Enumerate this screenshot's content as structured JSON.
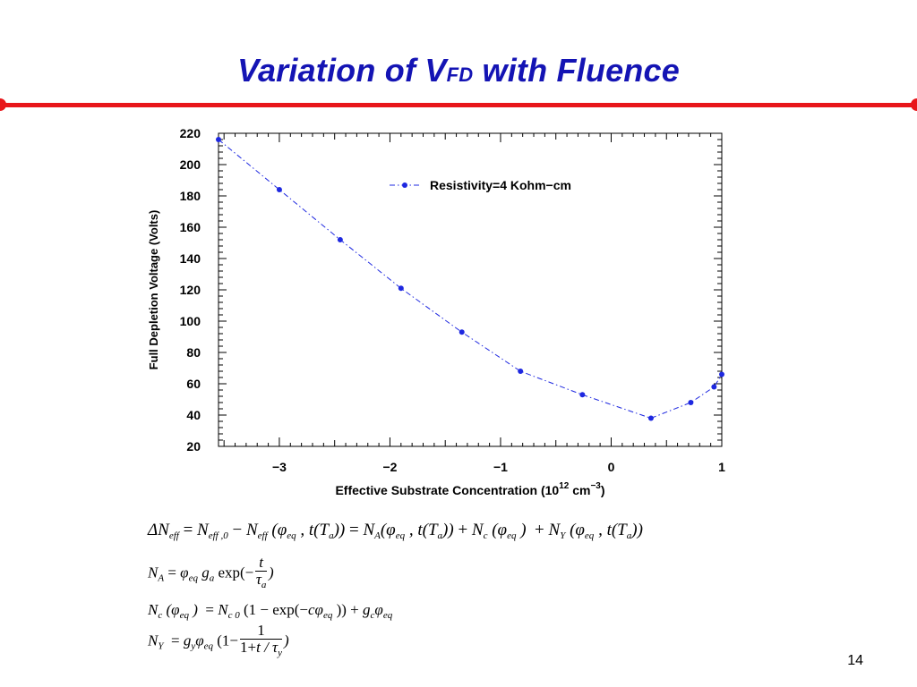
{
  "slide": {
    "title_main": "Variation of V",
    "title_sub": "FD",
    "title_end": " with Fluence",
    "page_number": "14",
    "accent_color": "#1414b4",
    "rule_color": "#e8161a"
  },
  "chart_data": {
    "type": "line",
    "xlabel_prefix": "Effective Substrate Concentration (10",
    "xlabel_exp": "12",
    "xlabel_mid": " cm",
    "xlabel_exp2": "−3",
    "xlabel_suffix": ")",
    "ylabel": "Full Depletion Voltage (Volts)",
    "xlim": [
      -3.55,
      1.0
    ],
    "ylim": [
      20,
      220
    ],
    "xticks": [
      -3,
      -2,
      -1,
      0,
      1
    ],
    "xtick_labels": [
      "−3",
      "−2",
      "−1",
      "0",
      "1"
    ],
    "yticks": [
      20,
      40,
      60,
      80,
      100,
      120,
      140,
      160,
      180,
      200,
      220
    ],
    "grid": false,
    "legend_position": "top-right",
    "series": [
      {
        "name": "Resistivity=4 Kohm−cm",
        "color": "#1e28e0",
        "line_style": "dash-dot",
        "marker": "circle",
        "x": [
          -3.55,
          -3.0,
          -2.45,
          -1.9,
          -1.35,
          -0.82,
          -0.26,
          0.36,
          0.72,
          0.93,
          1.0
        ],
        "y": [
          216,
          184,
          152,
          121,
          93,
          68,
          53,
          38,
          48,
          58,
          66
        ]
      }
    ]
  },
  "equations": {
    "eq1_lhs": "ΔN",
    "eq2_lhs": "N",
    "eq3_lhs": "N",
    "eq4_lhs": "N"
  }
}
